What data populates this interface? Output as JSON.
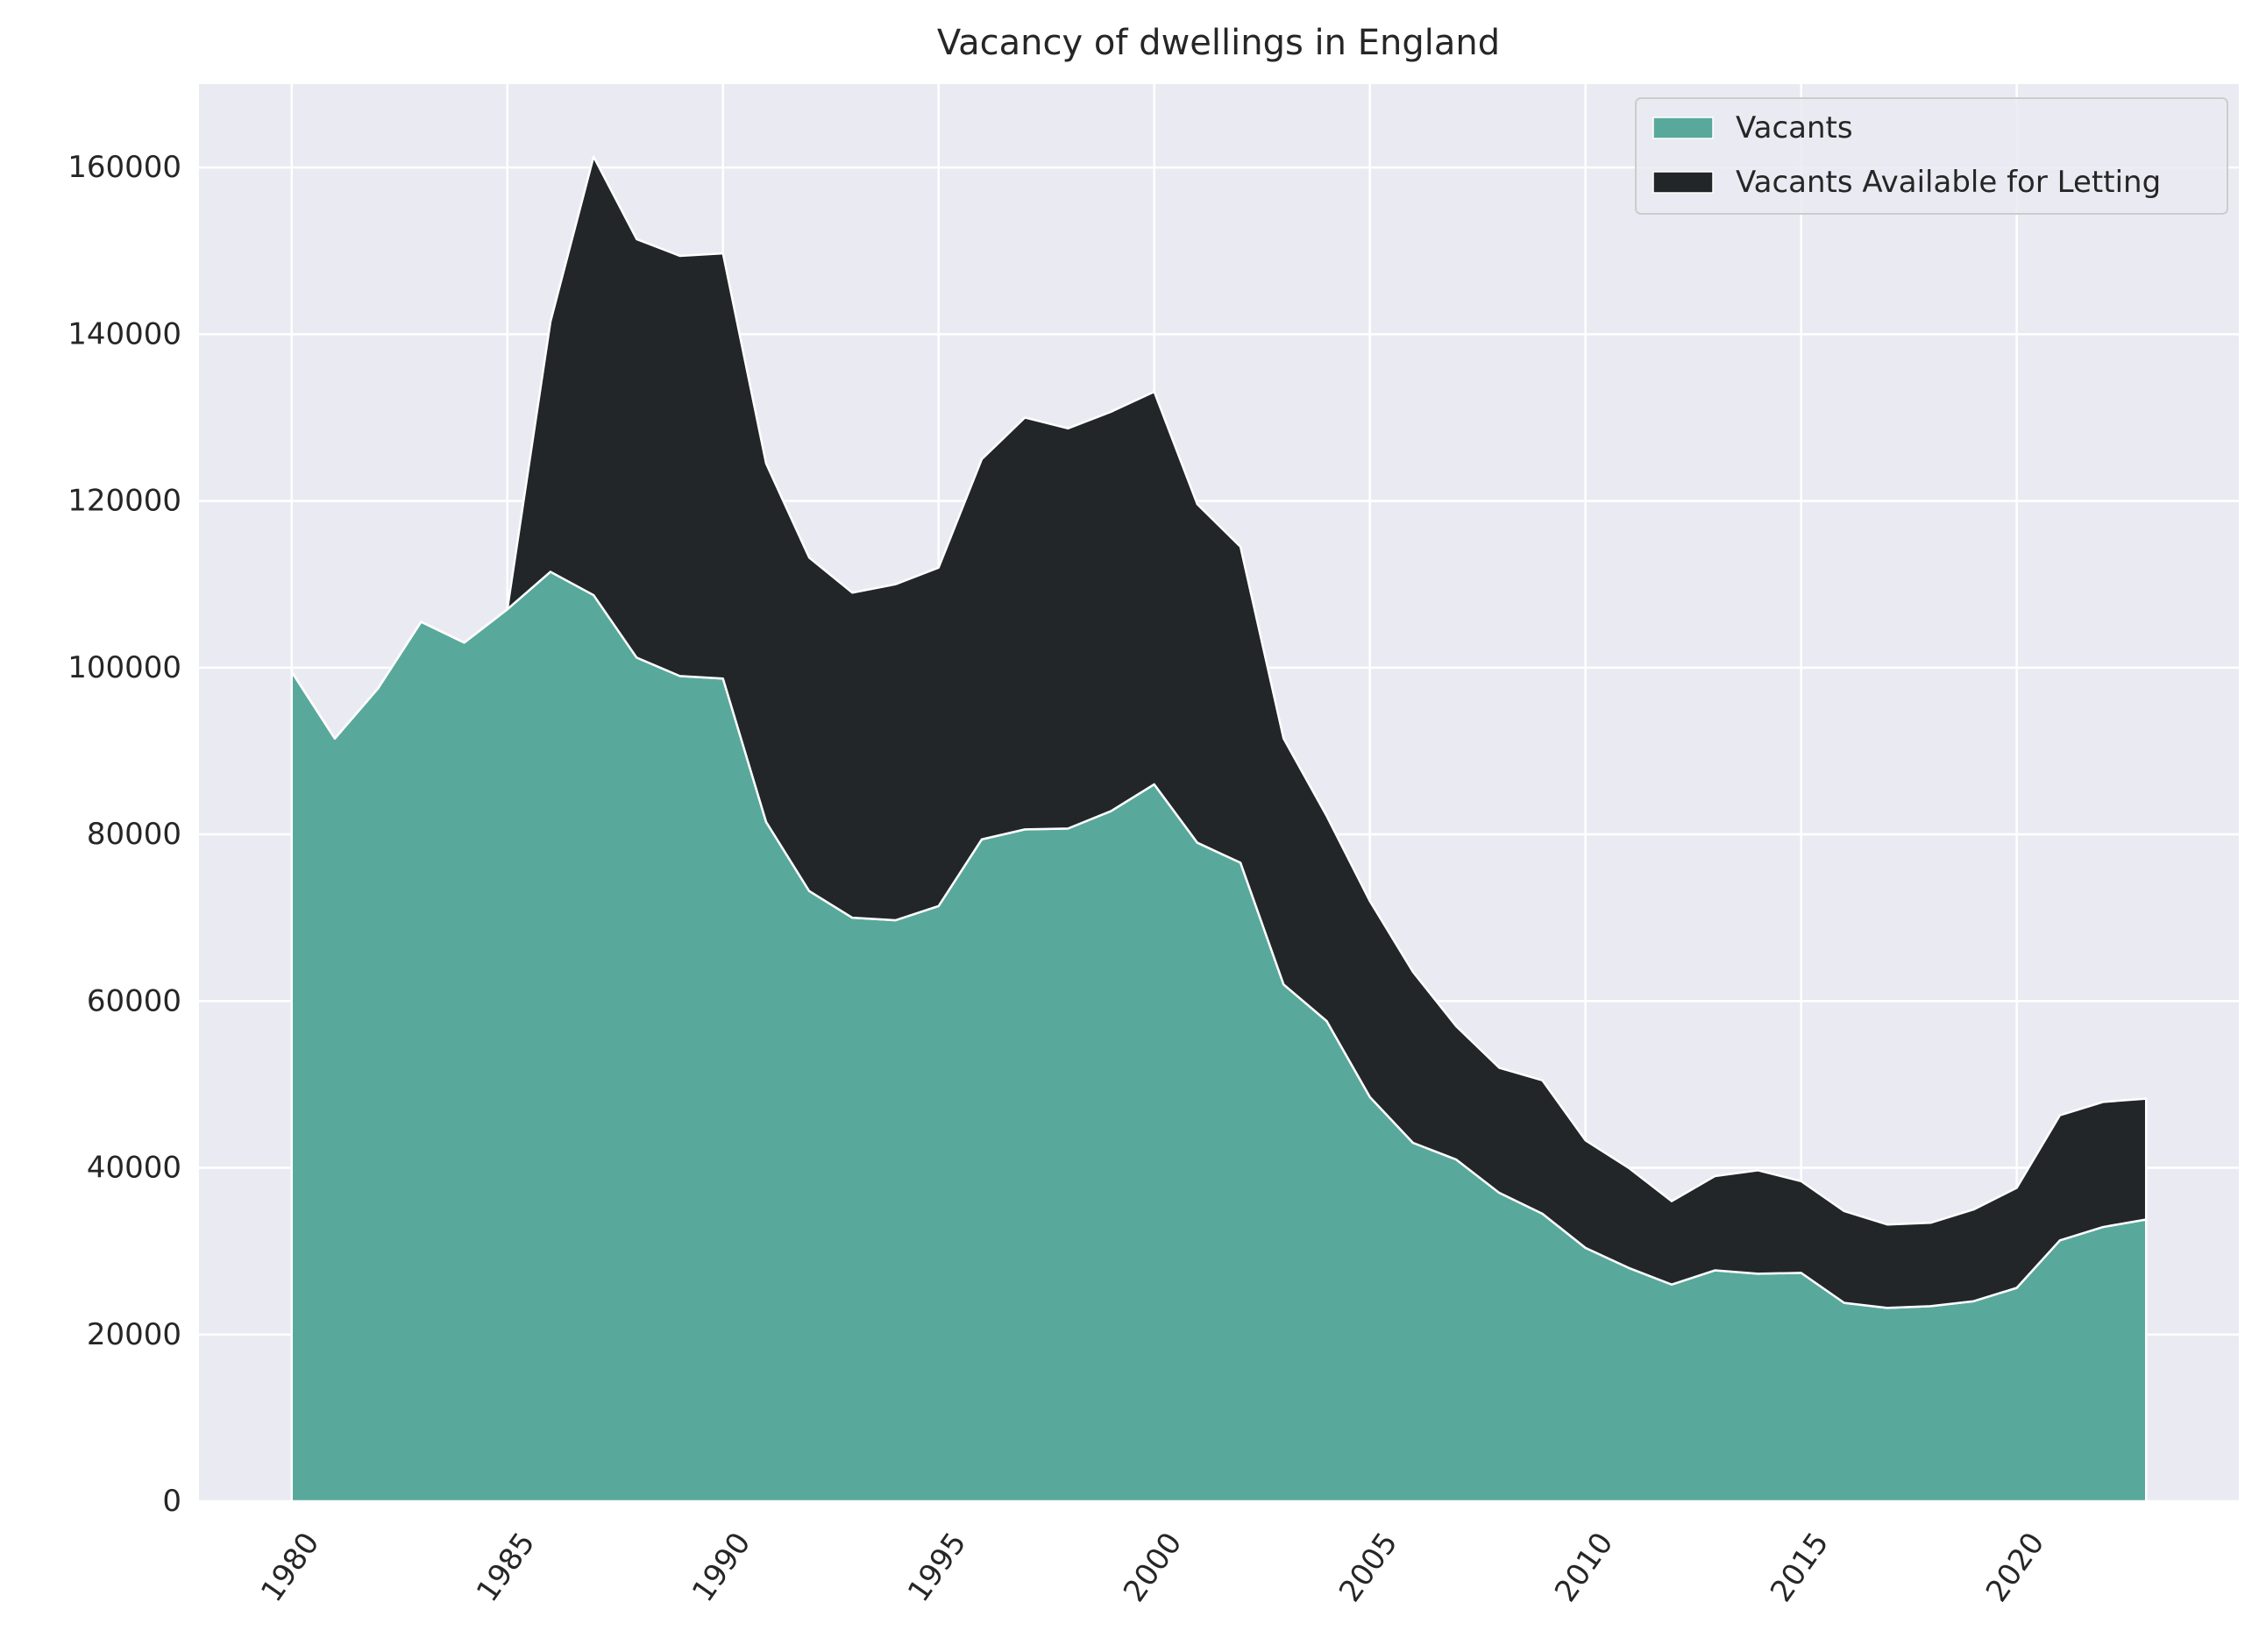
{
  "chart_data": {
    "type": "area",
    "stacked": true,
    "title": "Vacancy of dwellings in England",
    "xlabel": "",
    "ylabel": "",
    "x": [
      1980,
      1981,
      1982,
      1983,
      1984,
      1985,
      1986,
      1987,
      1988,
      1989,
      1990,
      1991,
      1992,
      1993,
      1994,
      1995,
      1996,
      1997,
      1998,
      1999,
      2000,
      2001,
      2002,
      2003,
      2004,
      2005,
      2006,
      2007,
      2008,
      2009,
      2010,
      2011,
      2012,
      2013,
      2014,
      2015,
      2016,
      2017,
      2018,
      2019,
      2020,
      2021,
      2022,
      2023
    ],
    "series": [
      {
        "name": "Vacants",
        "color": "#59a89c",
        "values": [
          99500,
          91500,
          97500,
          105500,
          103000,
          107000,
          111500,
          108700,
          101200,
          99000,
          98700,
          81500,
          73200,
          70000,
          69700,
          71400,
          79400,
          80600,
          80700,
          82800,
          86000,
          79000,
          76600,
          62000,
          57600,
          48500,
          43000,
          41000,
          37000,
          34500,
          30400,
          28000,
          26000,
          27700,
          27300,
          27400,
          23800,
          23200,
          23400,
          24000,
          25600,
          31300,
          32900,
          33800
        ]
      },
      {
        "name": "Vacants Available for Letting",
        "color": "#222628",
        "values": [
          0,
          0,
          0,
          0,
          0,
          0,
          30000,
          52600,
          50200,
          50400,
          51000,
          43000,
          40000,
          39000,
          40300,
          40600,
          45600,
          49400,
          48000,
          47900,
          47100,
          40600,
          37900,
          29500,
          24600,
          23500,
          20500,
          16000,
          15000,
          16000,
          12900,
          12000,
          10000,
          11300,
          12400,
          11000,
          11000,
          10000,
          10000,
          11000,
          12000,
          15000,
          15000,
          14500
        ]
      }
    ],
    "xticks": [
      "1980",
      "1985",
      "1990",
      "1995",
      "2000",
      "2005",
      "2010",
      "2015",
      "2020"
    ],
    "yticks": [
      "0",
      "20000",
      "40000",
      "60000",
      "80000",
      "100000",
      "120000",
      "140000",
      "160000"
    ],
    "xlim": [
      1977.85,
      2025.15
    ],
    "ylim": [
      0,
      170000
    ],
    "grid": true,
    "legend_position": "top-right",
    "background": "#eaeaf2"
  }
}
